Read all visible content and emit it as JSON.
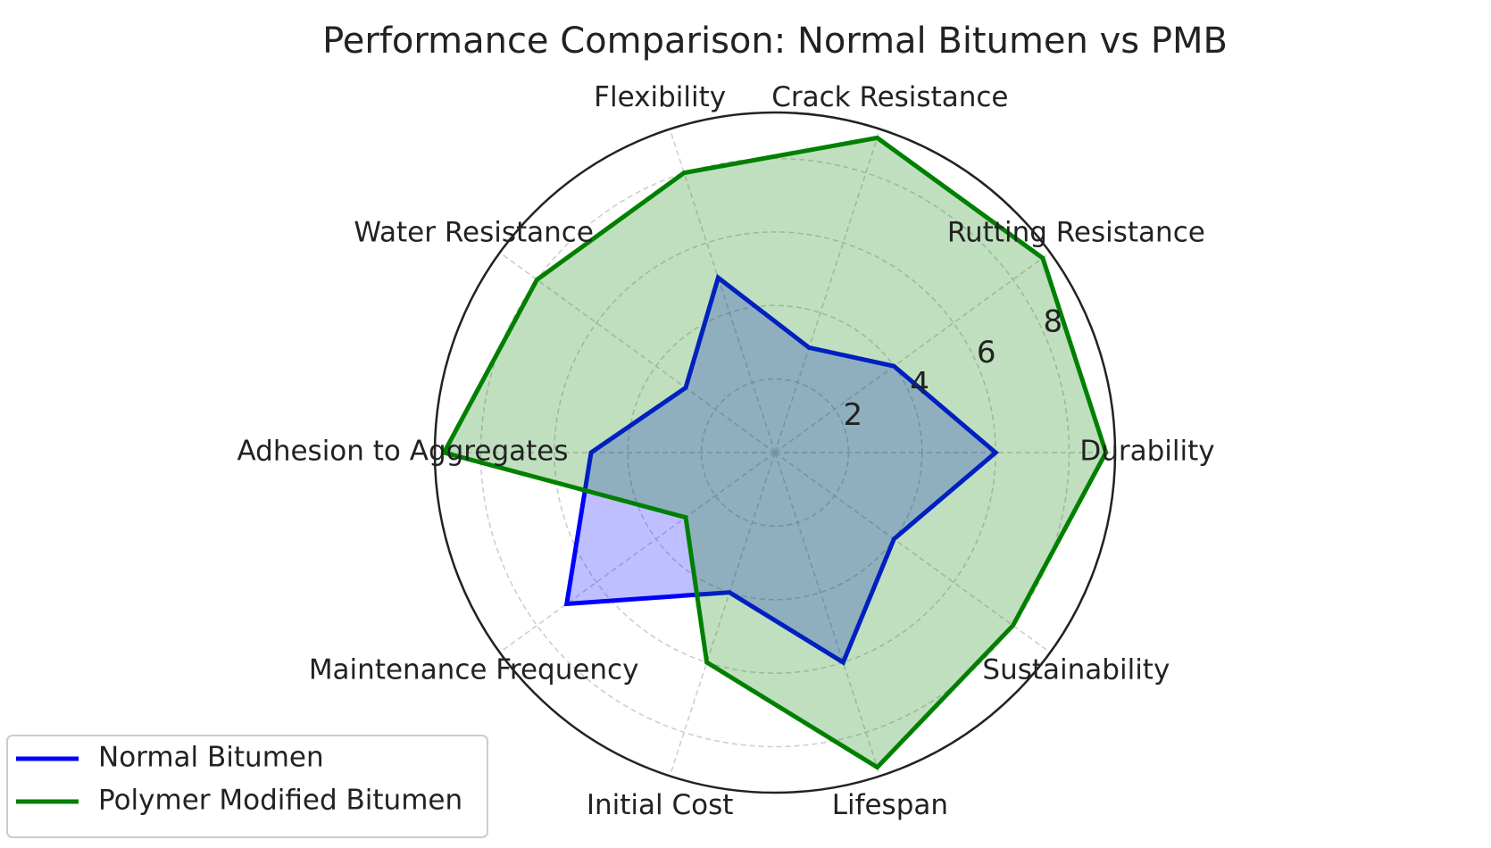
{
  "chart_data": {
    "type": "radar",
    "title": "Performance Comparison: Normal Bitumen vs PMB",
    "categories": [
      "Durability",
      "Rutting Resistance",
      "Crack Resistance",
      "Flexibility",
      "Water Resistance",
      "Adhesion to Aggregates",
      "Maintenance Frequency",
      "Initial Cost",
      "Lifespan",
      "Sustainability"
    ],
    "series": [
      {
        "name": "Normal Bitumen",
        "color": "#0000ff",
        "values": [
          6,
          4,
          3,
          5,
          3,
          5,
          7,
          4,
          6,
          4
        ]
      },
      {
        "name": "Polymer Modified Bitumen",
        "color": "#008000",
        "values": [
          9,
          9,
          9,
          8,
          8,
          9,
          3,
          6,
          9,
          8
        ]
      }
    ],
    "ylim": [
      0,
      9.25
    ],
    "yticks": [
      2,
      4,
      6,
      8
    ],
    "grid": true,
    "legend": "lower left"
  }
}
